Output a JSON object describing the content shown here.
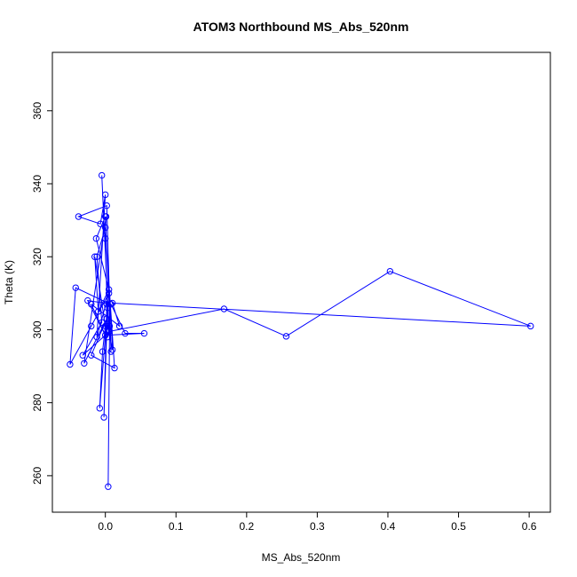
{
  "chart_data": {
    "type": "line",
    "title": "ATOM3 Northbound MS_Abs_520nm",
    "xlabel": "MS_Abs_520nm",
    "ylabel": "Theta (K)",
    "xlim": [
      -0.075,
      0.63
    ],
    "ylim": [
      250,
      376
    ],
    "xticks": [
      0.0,
      0.1,
      0.2,
      0.3,
      0.4,
      0.5,
      0.6
    ],
    "xtick_labels": [
      "0.0",
      "0.1",
      "0.2",
      "0.3",
      "0.4",
      "0.5",
      "0.6"
    ],
    "yticks": [
      260,
      280,
      300,
      320,
      340,
      360
    ],
    "ytick_labels": [
      "260",
      "280",
      "300",
      "320",
      "340",
      "360"
    ],
    "grid": false,
    "marker": "open-circle",
    "color": "#0000ff",
    "series": [
      {
        "x": [
          0.004,
          0.006,
          0.002,
          -0.002,
          0.003,
          -0.008,
          -0.004,
          0.0,
          -0.015,
          -0.01,
          0.005,
          -0.013,
          0.0,
          0.008,
          0.002,
          -0.038,
          -0.007,
          0.0,
          -0.012,
          0.005,
          -0.02,
          -0.05,
          -0.042,
          0.007,
          0.01,
          0.003,
          0.0,
          0.001,
          -0.03,
          0.002,
          -0.02,
          0.013,
          0.0,
          -0.012,
          -0.005,
          -0.032,
          0.0,
          0.055,
          0.028,
          0.008,
          -0.025,
          0.0,
          -0.02,
          0.02,
          0.01,
          0.602,
          0.403,
          0.256,
          0.168,
          0.005,
          -0.005,
          0.005,
          0.003
        ],
        "y": [
          257,
          301,
          307,
          276,
          306,
          278.5,
          294,
          301,
          320,
          305,
          311,
          325,
          331,
          294,
          334,
          331,
          329,
          337,
          298,
          310,
          301,
          290.5,
          311.5,
          307,
          294.5,
          301,
          325,
          331,
          290.8,
          303,
          293,
          289.5,
          328,
          320,
          302,
          293,
          298.5,
          299,
          299,
          307,
          308,
          298.5,
          307,
          301,
          307.3,
          301,
          316,
          298.2,
          305.7,
          299.5,
          342.3,
          300,
          298
        ]
      }
    ]
  }
}
